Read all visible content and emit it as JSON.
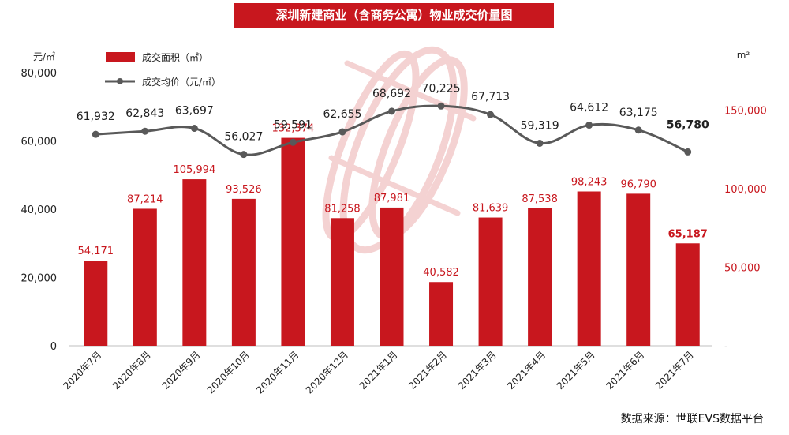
{
  "chart_data": {
    "type": "bar",
    "title": "深圳新建商业（含商务公寓）物业成交价量图",
    "source": "数据来源：世联EVS数据平台",
    "categories": [
      "2020年7月",
      "2020年8月",
      "2020年9月",
      "2020年10月",
      "2020年11月",
      "2020年12月",
      "2021年1月",
      "2021年2月",
      "2021年3月",
      "2021年4月",
      "2021年5月",
      "2021年6月",
      "2021年7月"
    ],
    "left_axis": {
      "unit": "元/㎡",
      "ticks": [
        "0",
        "20,000",
        "40,000",
        "60,000",
        "80,000"
      ],
      "ylim": [
        0,
        80000
      ]
    },
    "right_axis": {
      "unit": "m²",
      "ticks": [
        "-",
        "50,000",
        "100,000",
        "150,000"
      ],
      "ylim": [
        0,
        200000
      ]
    },
    "series": [
      {
        "name": "成交面积（㎡）",
        "type": "bar",
        "axis": "right",
        "color": "#c8171e",
        "values": [
          54171,
          87214,
          105994,
          93526,
          132374,
          81258,
          87981,
          40582,
          81639,
          87538,
          98243,
          96790,
          65187
        ],
        "labels": [
          "54,171",
          "87,214",
          "105,994",
          "93,526",
          "132,374",
          "81,258",
          "87,981",
          "40,582",
          "81,639",
          "87,538",
          "98,243",
          "96,790",
          "65,187"
        ]
      },
      {
        "name": "成交均价（元/㎡）",
        "type": "line",
        "axis": "left",
        "color": "#595959",
        "values": [
          61932,
          62843,
          63697,
          56027,
          59591,
          62655,
          68692,
          70225,
          67713,
          59319,
          64612,
          63175,
          56780
        ],
        "labels": [
          "61,932",
          "62,843",
          "63,697",
          "56,027",
          "59,591",
          "62,655",
          "68,692",
          "70,225",
          "67,713",
          "59,319",
          "64,612",
          "63,175",
          "56,780"
        ]
      }
    ],
    "legend": "top-left"
  }
}
